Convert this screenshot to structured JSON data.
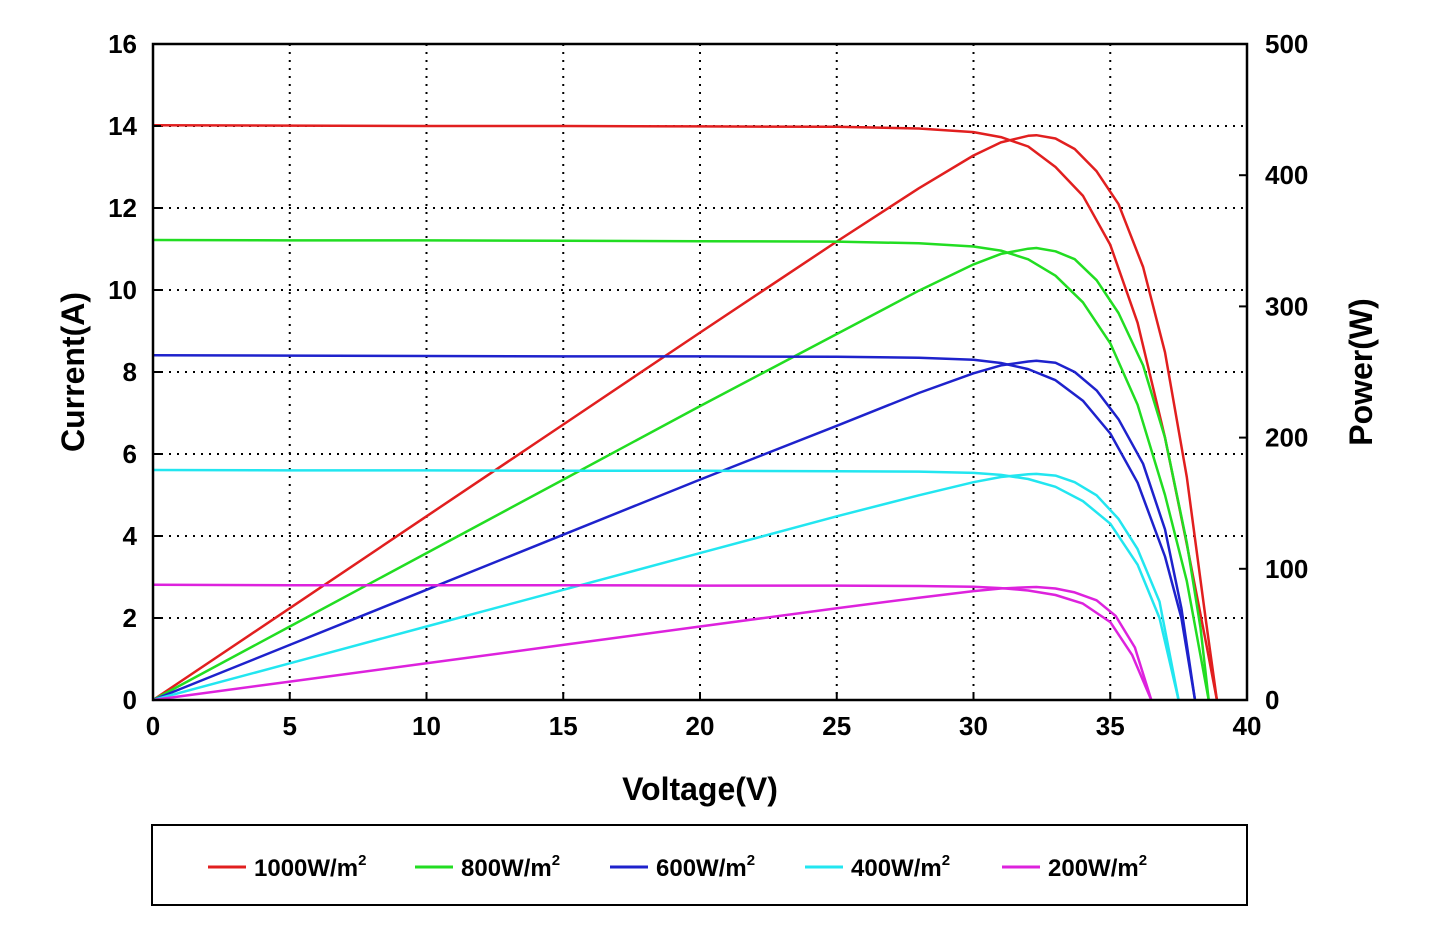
{
  "chart_data": {
    "type": "line",
    "title": "",
    "xlabel": "Voltage(V)",
    "ylabel": "Current(A)",
    "y2label": "Power(W)",
    "xlim": [
      0,
      40
    ],
    "ylim": [
      0,
      16
    ],
    "y2lim": [
      0,
      500
    ],
    "x_ticks": [
      0,
      5,
      10,
      15,
      20,
      25,
      30,
      35,
      40
    ],
    "y_ticks": [
      0,
      2,
      4,
      6,
      8,
      10,
      12,
      14,
      16
    ],
    "y2_ticks": [
      0,
      100,
      200,
      300,
      400,
      500
    ],
    "grid": true,
    "grid_style": "dotted",
    "legend_position": "bottom",
    "series": [
      {
        "name": "1000W/m",
        "name_sup": "2",
        "color": "#e11f1f",
        "iv": {
          "x": [
            0,
            5,
            10,
            15,
            20,
            25,
            28,
            30,
            31,
            32,
            33,
            34,
            35,
            36,
            37,
            37.8,
            38.5,
            38.9
          ],
          "y": [
            14.02,
            14.01,
            14.0,
            14.0,
            13.99,
            13.98,
            13.94,
            13.85,
            13.73,
            13.5,
            13.0,
            12.3,
            11.1,
            9.2,
            6.4,
            3.8,
            1.4,
            0
          ]
        },
        "pv": {
          "x": [
            0,
            5,
            10,
            15,
            20,
            25,
            28,
            30,
            31,
            32,
            32.3,
            33,
            33.7,
            34.5,
            35.3,
            36.2,
            37,
            37.8,
            38.5,
            38.9
          ],
          "y": [
            0,
            70,
            140,
            210,
            280,
            349.5,
            390,
            415,
            425,
            430,
            430.5,
            428,
            420,
            403,
            378,
            330,
            265,
            170,
            60,
            0
          ]
        }
      },
      {
        "name": "800W/m",
        "name_sup": "2",
        "color": "#22dd22",
        "iv": {
          "x": [
            0,
            5,
            10,
            15,
            20,
            25,
            28,
            30,
            31,
            32,
            33,
            34,
            35,
            36,
            37,
            37.8,
            38.6
          ],
          "y": [
            11.22,
            11.21,
            11.21,
            11.2,
            11.19,
            11.18,
            11.14,
            11.06,
            10.96,
            10.75,
            10.35,
            9.7,
            8.7,
            7.2,
            5.0,
            2.9,
            0
          ]
        },
        "pv": {
          "x": [
            0,
            5,
            10,
            15,
            20,
            25,
            28,
            30,
            31,
            32,
            32.3,
            33,
            33.7,
            34.5,
            35.3,
            36.2,
            37,
            37.8,
            38.3,
            38.6
          ],
          "y": [
            0,
            56,
            112,
            168,
            224,
            279,
            312,
            332,
            340,
            344,
            344.5,
            342,
            336,
            320,
            295,
            255,
            200,
            120,
            55,
            0
          ]
        }
      },
      {
        "name": "600W/m",
        "name_sup": "2",
        "color": "#1e22cc",
        "iv": {
          "x": [
            0,
            5,
            10,
            15,
            20,
            25,
            28,
            30,
            31,
            32,
            33,
            34,
            35,
            36,
            37,
            37.6,
            38.1
          ],
          "y": [
            8.41,
            8.4,
            8.39,
            8.38,
            8.38,
            8.37,
            8.35,
            8.3,
            8.22,
            8.07,
            7.8,
            7.3,
            6.5,
            5.3,
            3.5,
            2.0,
            0
          ]
        },
        "pv": {
          "x": [
            0,
            5,
            10,
            15,
            20,
            25,
            28,
            30,
            31,
            32,
            32.3,
            33,
            33.7,
            34.5,
            35.3,
            36.2,
            37,
            37.6,
            38.1
          ],
          "y": [
            0,
            42,
            84,
            126,
            168,
            209,
            234,
            249,
            255,
            258,
            258.5,
            257,
            250,
            236,
            214,
            180,
            130,
            70,
            0
          ]
        }
      },
      {
        "name": "400W/m",
        "name_sup": "2",
        "color": "#22e6f0",
        "iv": {
          "x": [
            0,
            5,
            10,
            15,
            20,
            25,
            28,
            30,
            31,
            32,
            33,
            34,
            35,
            36,
            36.8,
            37.5
          ],
          "y": [
            5.61,
            5.6,
            5.6,
            5.59,
            5.59,
            5.58,
            5.57,
            5.54,
            5.49,
            5.39,
            5.2,
            4.85,
            4.3,
            3.3,
            2.0,
            0
          ]
        },
        "pv": {
          "x": [
            0,
            5,
            10,
            15,
            20,
            25,
            28,
            30,
            31,
            32,
            32.3,
            33,
            33.7,
            34.5,
            35.3,
            36,
            36.8,
            37.5
          ],
          "y": [
            0,
            28,
            56,
            84,
            112,
            140,
            156,
            166,
            170,
            172,
            172.3,
            171,
            166,
            156,
            138,
            115,
            75,
            0
          ]
        }
      },
      {
        "name": "200W/m",
        "name_sup": "2",
        "color": "#dd22dd",
        "iv": {
          "x": [
            0,
            5,
            10,
            15,
            20,
            25,
            28,
            30,
            31,
            32,
            33,
            34,
            35,
            35.8,
            36.5
          ],
          "y": [
            2.81,
            2.8,
            2.8,
            2.8,
            2.79,
            2.79,
            2.78,
            2.76,
            2.73,
            2.67,
            2.56,
            2.35,
            1.9,
            1.1,
            0
          ]
        },
        "pv": {
          "x": [
            0,
            5,
            10,
            15,
            20,
            25,
            28,
            30,
            31,
            32,
            32.3,
            33,
            33.7,
            34.5,
            35.2,
            35.9,
            36.5
          ],
          "y": [
            0,
            14,
            28,
            42,
            56,
            70,
            78,
            83,
            85,
            86,
            86.1,
            85,
            82,
            76,
            64,
            40,
            0
          ]
        }
      }
    ]
  }
}
